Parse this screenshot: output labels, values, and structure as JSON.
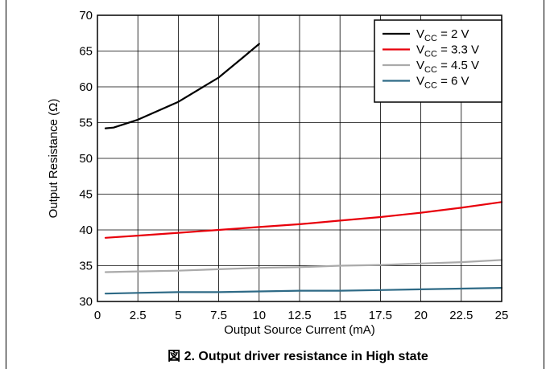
{
  "chart_data": {
    "type": "line",
    "caption": "図 2. Output driver resistance in High state",
    "xlabel": "Output Source Current (mA)",
    "ylabel": "Output Resistance (Ω)",
    "xlim": [
      0,
      25
    ],
    "ylim": [
      30,
      70
    ],
    "xticks": [
      0,
      2.5,
      5,
      7.5,
      10,
      12.5,
      15,
      17.5,
      20,
      22.5,
      25
    ],
    "xtick_labels": [
      "0",
      "2.5",
      "5",
      "7.5",
      "10",
      "12.5",
      "15",
      "17.5",
      "20",
      "22.5",
      "25"
    ],
    "yticks": [
      30,
      35,
      40,
      45,
      50,
      55,
      60,
      65,
      70
    ],
    "ytick_labels": [
      "30",
      "35",
      "40",
      "45",
      "50",
      "55",
      "60",
      "65",
      "70"
    ],
    "grid": true,
    "legend_position": "top-right",
    "series": [
      {
        "name": "V_CC = 2 V",
        "label_main": "V",
        "label_sub": "CC",
        "label_rest": " = 2 V",
        "color": "#000000",
        "x": [
          0.5,
          1,
          2.5,
          5,
          7.5,
          9,
          10
        ],
        "y": [
          54.2,
          54.3,
          55.4,
          57.9,
          61.3,
          64.1,
          66.0
        ]
      },
      {
        "name": "V_CC = 3.3 V",
        "label_main": "V",
        "label_sub": "CC",
        "label_rest": " = 3.3 V",
        "color": "#e8000b",
        "x": [
          0.5,
          2.5,
          5,
          7.5,
          10,
          12.5,
          15,
          17.5,
          20,
          22.5,
          25
        ],
        "y": [
          38.9,
          39.2,
          39.6,
          40.0,
          40.4,
          40.8,
          41.3,
          41.8,
          42.4,
          43.1,
          43.9
        ]
      },
      {
        "name": "V_CC = 4.5 V",
        "label_main": "V",
        "label_sub": "CC",
        "label_rest": " = 4.5 V",
        "color": "#aaaaaa",
        "x": [
          0.5,
          2.5,
          5,
          7.5,
          10,
          12.5,
          15,
          17.5,
          20,
          22.5,
          25
        ],
        "y": [
          34.1,
          34.2,
          34.3,
          34.5,
          34.7,
          34.8,
          35.0,
          35.1,
          35.3,
          35.5,
          35.8
        ]
      },
      {
        "name": "V_CC = 6 V",
        "label_main": "V",
        "label_sub": "CC",
        "label_rest": " = 6 V",
        "color": "#2e6a86",
        "x": [
          0.5,
          2.5,
          5,
          7.5,
          10,
          12.5,
          15,
          17.5,
          20,
          22.5,
          25
        ],
        "y": [
          31.1,
          31.2,
          31.3,
          31.3,
          31.4,
          31.5,
          31.5,
          31.6,
          31.7,
          31.8,
          31.9
        ]
      }
    ]
  }
}
